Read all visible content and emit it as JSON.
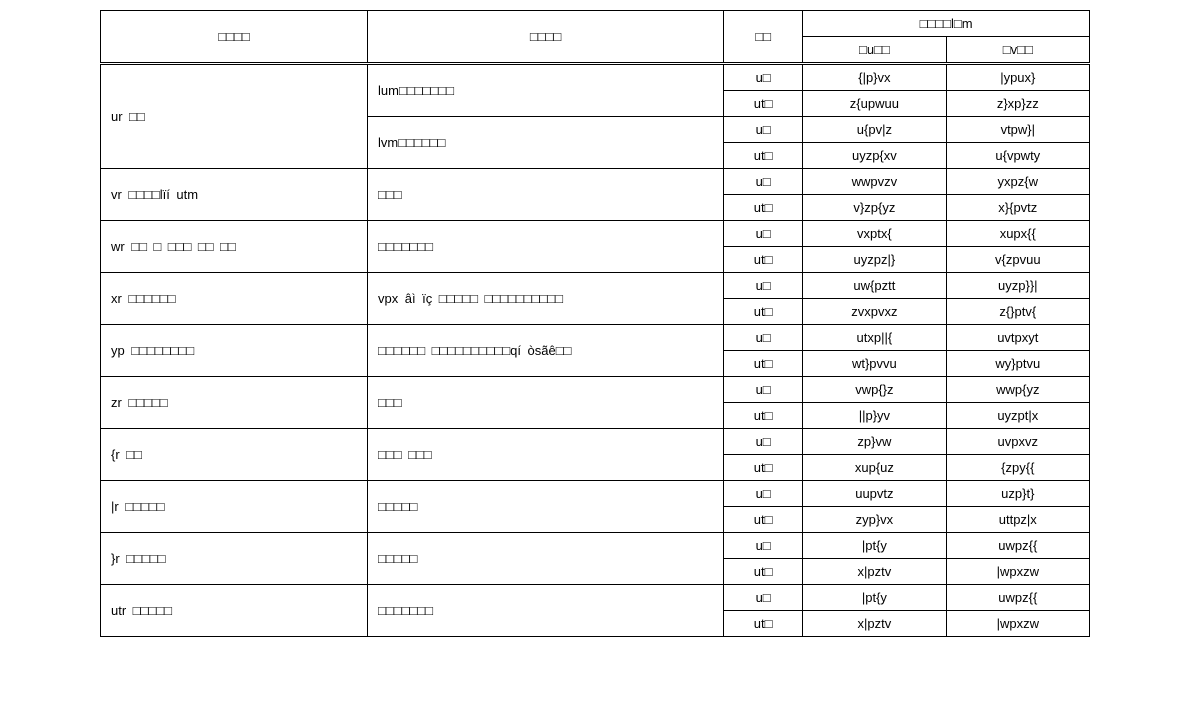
{
  "table": {
    "header": {
      "col1": "□□□□",
      "col2": "□□□□",
      "col3": "□□",
      "col45_top": "□□□□l□m",
      "col4": "□u□□",
      "col5": "□v□□"
    },
    "rows": [
      {
        "a": "ur □□",
        "subs": [
          {
            "b": "lum□□□□□□□",
            "lines": [
              {
                "c": "u□",
                "d": "{|p}vx",
                "e": "|ypux}"
              },
              {
                "c": "ut□",
                "d": "z{upwuu",
                "e": "z}xp}zz"
              }
            ]
          },
          {
            "b": "lvm□□□□□□",
            "lines": [
              {
                "c": "u□",
                "d": "u{pv|z",
                "e": "vtpw}|"
              },
              {
                "c": "ut□",
                "d": "uyzp{xv",
                "e": "u{vpwty"
              }
            ]
          }
        ]
      },
      {
        "a": "vr □□□□lïí utm",
        "subs": [
          {
            "b": "□□□",
            "lines": [
              {
                "c": "u□",
                "d": "wwpvzv",
                "e": "yxpz{w"
              },
              {
                "c": "ut□",
                "d": "v}zp{yz",
                "e": "x}{pvtz"
              }
            ]
          }
        ]
      },
      {
        "a": "wr □□ □ □□□ □□ □□",
        "subs": [
          {
            "b": "□□□□□□□",
            "lines": [
              {
                "c": "u□",
                "d": "vxptx{",
                "e": "xupx{{"
              },
              {
                "c": "ut□",
                "d": "uyzpz|}",
                "e": "v{zpvuu"
              }
            ]
          }
        ]
      },
      {
        "a": "xr □□□□□□",
        "subs": [
          {
            "b": "vpx âì ïç □□□□□ □□□□□□□□□□",
            "lines": [
              {
                "c": "u□",
                "d": "uw{pztt",
                "e": "uyzp}}|"
              },
              {
                "c": "ut□",
                "d": "zvxpvxz",
                "e": "z{}ptv{"
              }
            ]
          }
        ]
      },
      {
        "a": "yp □□□□□□□□",
        "subs": [
          {
            "b": "□□□□□□ □□□□□□□□□□qí òsãê□□",
            "lines": [
              {
                "c": "u□",
                "d": "utxp||{",
                "e": "uvtpxyt"
              },
              {
                "c": "ut□",
                "d": "wt}pvvu",
                "e": "wy}ptvu"
              }
            ]
          }
        ]
      },
      {
        "a": "zr □□□□□",
        "subs": [
          {
            "b": "□□□",
            "lines": [
              {
                "c": "u□",
                "d": "vwp{}z",
                "e": "wwp{yz"
              },
              {
                "c": "ut□",
                "d": "||p}yv",
                "e": "uyzpt|x"
              }
            ]
          }
        ]
      },
      {
        "a": "{r □□",
        "subs": [
          {
            "b": "□□□ □□□",
            "lines": [
              {
                "c": "u□",
                "d": "zp}vw",
                "e": "uvpxvz"
              },
              {
                "c": "ut□",
                "d": "xup{uz",
                "e": "{zpy{{"
              }
            ]
          }
        ]
      },
      {
        "a": "|r □□□□□",
        "subs": [
          {
            "b": "□□□□□",
            "lines": [
              {
                "c": "u□",
                "d": "uupvtz",
                "e": "uzp}t}"
              },
              {
                "c": "ut□",
                "d": "zyp}vx",
                "e": "uttpz|x"
              }
            ]
          }
        ]
      },
      {
        "a": "}r □□□□□",
        "subs": [
          {
            "b": "□□□□□",
            "lines": [
              {
                "c": "u□",
                "d": "|pt{y",
                "e": "uwpz{{"
              },
              {
                "c": "ut□",
                "d": "x|pztv",
                "e": "|wpxzw"
              }
            ]
          }
        ]
      },
      {
        "a": "utr □□□□□",
        "subs": [
          {
            "b": "□□□□□□□",
            "lines": [
              {
                "c": "u□",
                "d": "|pt{y",
                "e": "uwpz{{"
              },
              {
                "c": "ut□",
                "d": "x|pztv",
                "e": "|wpxzw"
              }
            ]
          }
        ]
      }
    ]
  }
}
